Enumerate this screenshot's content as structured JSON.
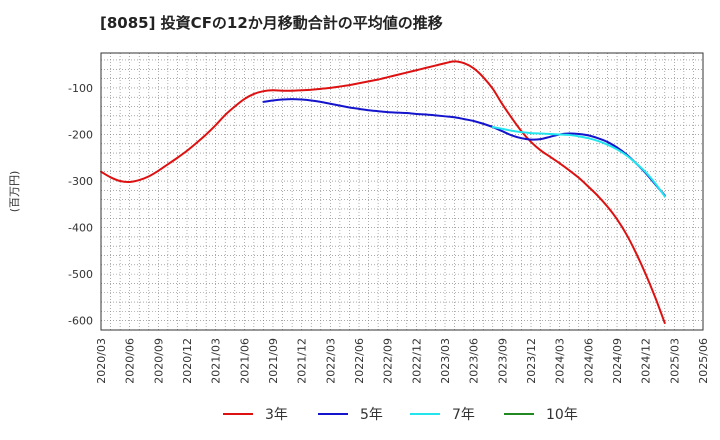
{
  "chart_data": {
    "type": "line",
    "title": "[8085]  投資CFの12か月移動合計の平均値の推移",
    "ylabel": "(百万円)",
    "xlabel": "",
    "ylim": [
      -620,
      -25
    ],
    "y_ticks": [
      -100,
      -200,
      -300,
      -400,
      -500,
      -600
    ],
    "x_ticks": [
      "2020/03",
      "2020/06",
      "2020/09",
      "2020/12",
      "2021/03",
      "2021/06",
      "2021/09",
      "2021/12",
      "2022/03",
      "2022/06",
      "2022/09",
      "2022/12",
      "2023/03",
      "2023/06",
      "2023/09",
      "2023/12",
      "2024/03",
      "2024/06",
      "2024/09",
      "2024/12",
      "2025/03",
      "2025/06"
    ],
    "grid": true,
    "legend_position": "bottom",
    "series": [
      {
        "name": "3年",
        "color": "#dd1111",
        "points": [
          [
            "2020/03",
            -280
          ],
          [
            "2020/04",
            -292
          ],
          [
            "2020/05",
            -300
          ],
          [
            "2020/06",
            -302
          ],
          [
            "2020/07",
            -298
          ],
          [
            "2020/08",
            -290
          ],
          [
            "2020/09",
            -278
          ],
          [
            "2020/10",
            -264
          ],
          [
            "2020/11",
            -250
          ],
          [
            "2020/12",
            -235
          ],
          [
            "2021/01",
            -218
          ],
          [
            "2021/02",
            -200
          ],
          [
            "2021/03",
            -180
          ],
          [
            "2021/04",
            -158
          ],
          [
            "2021/05",
            -140
          ],
          [
            "2021/06",
            -124
          ],
          [
            "2021/07",
            -113
          ],
          [
            "2021/08",
            -107
          ],
          [
            "2021/09",
            -105
          ],
          [
            "2021/10",
            -106
          ],
          [
            "2021/11",
            -106
          ],
          [
            "2021/12",
            -105
          ],
          [
            "2022/01",
            -104
          ],
          [
            "2022/02",
            -102
          ],
          [
            "2022/03",
            -100
          ],
          [
            "2022/04",
            -97
          ],
          [
            "2022/05",
            -94
          ],
          [
            "2022/06",
            -90
          ],
          [
            "2022/07",
            -86
          ],
          [
            "2022/08",
            -82
          ],
          [
            "2022/09",
            -77
          ],
          [
            "2022/10",
            -72
          ],
          [
            "2022/11",
            -67
          ],
          [
            "2022/12",
            -62
          ],
          [
            "2023/01",
            -57
          ],
          [
            "2023/02",
            -52
          ],
          [
            "2023/03",
            -47
          ],
          [
            "2023/04",
            -43
          ],
          [
            "2023/05",
            -47
          ],
          [
            "2023/06",
            -58
          ],
          [
            "2023/07",
            -77
          ],
          [
            "2023/08",
            -102
          ],
          [
            "2023/09",
            -135
          ],
          [
            "2023/10",
            -165
          ],
          [
            "2023/11",
            -193
          ],
          [
            "2023/12",
            -216
          ],
          [
            "2024/01",
            -234
          ],
          [
            "2024/02",
            -248
          ],
          [
            "2024/03",
            -262
          ],
          [
            "2024/04",
            -277
          ],
          [
            "2024/05",
            -293
          ],
          [
            "2024/06",
            -312
          ],
          [
            "2024/07",
            -332
          ],
          [
            "2024/08",
            -355
          ],
          [
            "2024/09",
            -382
          ],
          [
            "2024/10",
            -415
          ],
          [
            "2024/11",
            -455
          ],
          [
            "2024/12",
            -500
          ],
          [
            "2025/01",
            -550
          ],
          [
            "2025/02",
            -605
          ]
        ]
      },
      {
        "name": "5年",
        "color": "#1414cc",
        "points": [
          [
            "2021/08",
            -130
          ],
          [
            "2021/09",
            -127
          ],
          [
            "2021/10",
            -125
          ],
          [
            "2021/11",
            -124
          ],
          [
            "2021/12",
            -125
          ],
          [
            "2022/01",
            -127
          ],
          [
            "2022/02",
            -130
          ],
          [
            "2022/03",
            -134
          ],
          [
            "2022/04",
            -138
          ],
          [
            "2022/05",
            -142
          ],
          [
            "2022/06",
            -145
          ],
          [
            "2022/07",
            -148
          ],
          [
            "2022/08",
            -150
          ],
          [
            "2022/09",
            -152
          ],
          [
            "2022/10",
            -153
          ],
          [
            "2022/11",
            -154
          ],
          [
            "2022/12",
            -156
          ],
          [
            "2023/01",
            -157
          ],
          [
            "2023/02",
            -159
          ],
          [
            "2023/03",
            -161
          ],
          [
            "2023/04",
            -163
          ],
          [
            "2023/05",
            -167
          ],
          [
            "2023/06",
            -171
          ],
          [
            "2023/07",
            -177
          ],
          [
            "2023/08",
            -184
          ],
          [
            "2023/09",
            -193
          ],
          [
            "2023/10",
            -202
          ],
          [
            "2023/11",
            -208
          ],
          [
            "2023/12",
            -211
          ],
          [
            "2024/01",
            -210
          ],
          [
            "2024/02",
            -205
          ],
          [
            "2024/03",
            -200
          ],
          [
            "2024/04",
            -198
          ],
          [
            "2024/05",
            -199
          ],
          [
            "2024/06",
            -202
          ],
          [
            "2024/07",
            -208
          ],
          [
            "2024/08",
            -216
          ],
          [
            "2024/09",
            -228
          ],
          [
            "2024/10",
            -243
          ],
          [
            "2024/11",
            -262
          ],
          [
            "2024/12",
            -283
          ],
          [
            "2025/01",
            -307
          ],
          [
            "2025/02",
            -331
          ]
        ]
      },
      {
        "name": "7年",
        "color": "#22e5ee",
        "points": [
          [
            "2023/08",
            -184
          ],
          [
            "2023/09",
            -188
          ],
          [
            "2023/10",
            -192
          ],
          [
            "2023/11",
            -195
          ],
          [
            "2023/12",
            -197
          ],
          [
            "2024/01",
            -198
          ],
          [
            "2024/02",
            -199
          ],
          [
            "2024/03",
            -200
          ],
          [
            "2024/04",
            -201
          ],
          [
            "2024/05",
            -204
          ],
          [
            "2024/06",
            -208
          ],
          [
            "2024/07",
            -214
          ],
          [
            "2024/08",
            -222
          ],
          [
            "2024/09",
            -232
          ],
          [
            "2024/10",
            -245
          ],
          [
            "2024/11",
            -262
          ],
          [
            "2024/12",
            -281
          ],
          [
            "2025/01",
            -305
          ],
          [
            "2025/02",
            -333
          ]
        ]
      },
      {
        "name": "10年",
        "color": "#228822",
        "points": []
      }
    ]
  }
}
